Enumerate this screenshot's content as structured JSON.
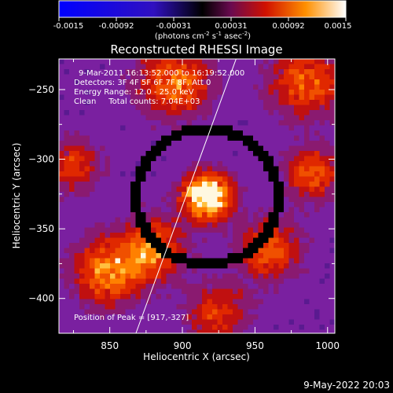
{
  "colorbar": {
    "ticks": [
      "-0.0015",
      "-0.00092",
      "-0.00031",
      "0.00031",
      "0.00092",
      "0.0015"
    ],
    "units_main": "(photons cm",
    "units_exp1": "-2",
    "units_mid": " s",
    "units_exp2": "-1",
    "units_tail": " asec",
    "units_exp3": "-2",
    "units_close": ")"
  },
  "chart_data": {
    "type": "heatmap",
    "title": "Reconstructed RHESSI Image",
    "xlabel": "Heliocentric X (arcsec)",
    "ylabel": "Heliocentric Y (arcsec)",
    "xlim": [
      815,
      1005
    ],
    "ylim": [
      -425,
      -228
    ],
    "x_ticks": [
      850,
      900,
      950,
      1000
    ],
    "y_ticks": [
      -250,
      -300,
      -350,
      -400
    ],
    "colorbar_range": [
      -0.0015,
      0.0015
    ],
    "peak": {
      "x": 917,
      "y": -327
    },
    "limb_line": [
      [
        868,
        -425
      ],
      [
        937,
        -228
      ]
    ],
    "annotations": [
      "9-Mar-2011 16:13:52.000 to 16:19:52.000",
      "Detectors: 3F 4F 5F 6F 7F 8F, Att 0",
      "Energy Range: 12.0 - 25.0 keV",
      "Clean     Total counts: 7.04E+03"
    ],
    "peak_label": "Position of Peak = [917,-327]",
    "colors": {
      "background": "#000000",
      "foreground": "#ffffff",
      "negative": "#2020ff",
      "zero": "#000000",
      "positive_low": "#7a1fa0",
      "positive_mid": "#d82000",
      "positive_high": "#ffffff"
    }
  },
  "footer_date": "9-May-2022 20:03"
}
